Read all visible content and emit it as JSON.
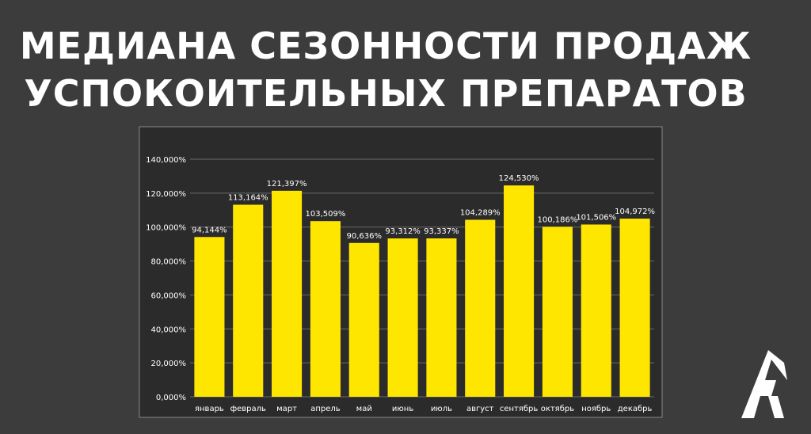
{
  "title": {
    "line1": "МЕДИАНА СЕЗОННОСТИ ПРОДАЖ",
    "line2": "УСПОКОИТЕЛЬНЫХ ПРЕПАРАТОВ"
  },
  "colors": {
    "background": "#3c3c3c",
    "plot_background": "#2b2b2b",
    "bar": "#ffe600",
    "text": "#ffffff",
    "grid": "#6a6a6a"
  },
  "logo": {
    "icon": "brand-logo-icon"
  },
  "chart_data": {
    "type": "bar",
    "title": "МЕДИАНА СЕЗОННОСТИ ПРОДАЖ УСПОКОИТЕЛЬНЫХ ПРЕПАРАТОВ",
    "xlabel": "",
    "ylabel": "",
    "categories": [
      "январь",
      "февраль",
      "март",
      "апрель",
      "май",
      "июнь",
      "июль",
      "август",
      "сентябрь",
      "октябрь",
      "ноябрь",
      "декабрь"
    ],
    "values": [
      94.144,
      113.164,
      121.397,
      103.509,
      90.636,
      93.312,
      93.337,
      104.289,
      124.53,
      100.186,
      101.506,
      104.972
    ],
    "value_labels": [
      "94,144%",
      "113,164%",
      "121,397%",
      "103,509%",
      "90,636%",
      "93,312%",
      "93,337%",
      "104,289%",
      "124,530%",
      "100,186%",
      "101,506%",
      "104,972%"
    ],
    "ylim": [
      0,
      140
    ],
    "yticks": [
      0,
      20,
      40,
      60,
      80,
      100,
      120,
      140
    ],
    "ytick_labels": [
      "0,000%",
      "20,000%",
      "40,000%",
      "60,000%",
      "80,000%",
      "100,000%",
      "120,000%",
      "140,000%"
    ],
    "grid": true,
    "legend": "none"
  }
}
